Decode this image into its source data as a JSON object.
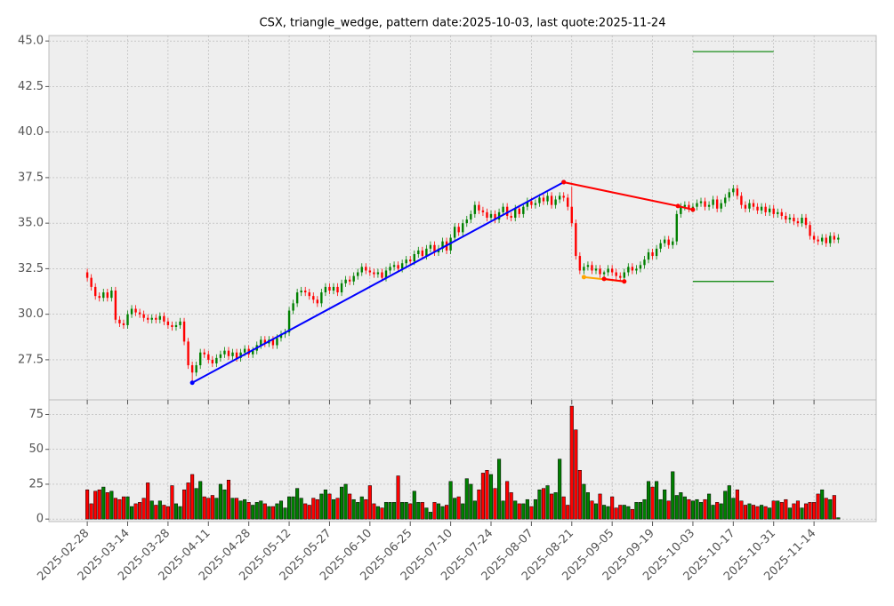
{
  "chart_data": [
    {
      "type": "candlestick",
      "title": "CSX, triangle_wedge, pattern date:2025-10-03, last quote:2025-11-24",
      "up_color": "green",
      "down_color": "red",
      "xlim": [
        -9.5,
        195.4
      ],
      "ylim": [
        25.3,
        45.3
      ],
      "yticks": [
        27.5,
        {
          "value": 30,
          "label": "30.0"
        },
        32.5,
        {
          "value": 35,
          "label": "35.0"
        },
        37.5,
        {
          "value": 40,
          "label": "40.0"
        },
        42.5,
        {
          "value": 45,
          "label": "45.0"
        }
      ],
      "grid": true,
      "open": [
        32.3,
        32.0,
        31.5,
        31.0,
        30.9,
        31.2,
        30.9,
        31.3,
        29.7,
        29.5,
        29.4,
        30.0,
        30.3,
        30.1,
        30.0,
        29.8,
        29.7,
        29.8,
        29.7,
        29.9,
        29.6,
        29.4,
        29.3,
        29.4,
        29.6,
        28.5,
        27.2,
        26.8,
        27.2,
        27.9,
        27.8,
        27.5,
        27.3,
        27.6,
        27.8,
        28.0,
        27.7,
        27.9,
        27.6,
        27.9,
        28.1,
        27.8,
        28.0,
        28.3,
        28.6,
        28.4,
        28.6,
        28.3,
        28.7,
        28.9,
        29.0,
        30.2,
        30.6,
        31.2,
        31.3,
        31.2,
        31.0,
        30.8,
        30.6,
        31.2,
        31.5,
        31.3,
        31.5,
        31.2,
        31.7,
        31.9,
        31.8,
        32.1,
        32.3,
        32.6,
        32.4,
        32.3,
        32.2,
        32.3,
        32.0,
        32.4,
        32.6,
        32.7,
        32.5,
        32.8,
        33.0,
        32.9,
        33.3,
        33.5,
        33.2,
        33.6,
        33.8,
        33.4,
        33.6,
        34.0,
        33.5,
        34.2,
        34.8,
        34.5,
        35.0,
        35.2,
        35.5,
        36.0,
        35.7,
        35.6,
        35.3,
        35.5,
        35.2,
        35.6,
        35.9,
        35.4,
        35.3,
        35.8,
        35.5,
        35.9,
        36.2,
        36.0,
        36.1,
        36.4,
        36.2,
        36.5,
        36.0,
        36.3,
        36.5,
        36.4,
        35.9,
        35.0,
        33.2,
        32.4,
        32.6,
        32.7,
        32.4,
        32.5,
        32.2,
        32.3,
        32.5,
        32.3,
        32.1,
        32.0,
        32.3,
        32.6,
        32.4,
        32.5,
        32.7,
        33.0,
        33.4,
        33.2,
        33.6,
        33.9,
        34.1,
        33.8,
        34.0,
        35.5,
        35.9,
        36.0,
        35.8,
        35.9,
        36.1,
        36.2,
        35.9,
        36.0,
        36.3,
        35.8,
        36.1,
        36.4,
        36.7,
        36.9,
        36.5,
        36.0,
        35.8,
        36.1,
        35.9,
        35.7,
        35.9,
        35.6,
        35.8,
        35.5,
        35.6,
        35.4,
        35.2,
        35.3,
        35.1,
        35.0,
        35.3,
        34.9,
        34.3,
        34.1,
        34.0,
        34.2,
        33.9,
        34.3,
        34.1
      ],
      "high": [
        32.5,
        32.2,
        31.7,
        31.2,
        31.4,
        31.4,
        31.5,
        31.5,
        29.9,
        29.7,
        30.2,
        30.5,
        30.5,
        30.3,
        30.2,
        30.0,
        30.0,
        30.0,
        30.1,
        30.1,
        29.8,
        29.6,
        29.6,
        29.8,
        29.8,
        28.7,
        27.4,
        27.4,
        28.1,
        28.1,
        28.0,
        27.7,
        27.8,
        28.0,
        28.2,
        28.2,
        28.1,
        28.1,
        28.1,
        28.3,
        28.3,
        28.2,
        28.5,
        28.8,
        28.8,
        28.8,
        28.8,
        28.9,
        29.1,
        29.2,
        30.4,
        30.8,
        31.4,
        31.5,
        31.5,
        31.4,
        31.2,
        31.0,
        31.4,
        31.7,
        31.7,
        31.7,
        31.7,
        31.9,
        32.1,
        32.1,
        32.3,
        32.5,
        32.8,
        32.8,
        32.6,
        32.5,
        32.5,
        32.5,
        32.6,
        32.8,
        32.9,
        32.9,
        33.0,
        33.2,
        33.2,
        33.5,
        33.7,
        33.7,
        33.8,
        34.0,
        34.0,
        33.8,
        34.2,
        34.2,
        34.4,
        35.0,
        35.0,
        35.2,
        35.4,
        35.7,
        36.2,
        36.2,
        35.9,
        35.8,
        35.7,
        35.7,
        35.8,
        36.1,
        36.1,
        35.6,
        36.0,
        36.0,
        36.1,
        36.4,
        36.4,
        36.3,
        36.6,
        36.6,
        36.7,
        36.7,
        36.5,
        36.7,
        36.7,
        36.6,
        37.0,
        35.2,
        33.4,
        32.8,
        32.9,
        32.9,
        32.7,
        32.7,
        32.4,
        32.7,
        32.7,
        32.5,
        32.3,
        32.5,
        32.8,
        32.8,
        32.7,
        32.9,
        33.2,
        33.6,
        33.6,
        33.8,
        34.1,
        34.3,
        34.3,
        34.2,
        35.7,
        36.1,
        36.2,
        36.2,
        36.1,
        36.3,
        36.4,
        36.4,
        36.2,
        36.5,
        36.5,
        36.3,
        36.6,
        36.9,
        37.1,
        37.1,
        36.7,
        36.2,
        36.3,
        36.3,
        36.1,
        36.1,
        36.1,
        36.0,
        36.0,
        35.8,
        35.8,
        35.6,
        35.5,
        35.5,
        35.3,
        35.5,
        35.5,
        35.1,
        34.5,
        34.3,
        34.4,
        34.4,
        34.5,
        34.5,
        34.4
      ],
      "low": [
        31.8,
        31.3,
        30.8,
        30.7,
        30.7,
        30.7,
        30.7,
        29.5,
        29.3,
        29.2,
        29.2,
        29.8,
        29.9,
        29.8,
        29.6,
        29.5,
        29.5,
        29.5,
        29.5,
        29.4,
        29.2,
        29.1,
        29.1,
        29.2,
        28.3,
        27.0,
        26.2,
        26.6,
        27.0,
        27.6,
        27.3,
        27.1,
        27.1,
        27.4,
        27.6,
        27.5,
        27.5,
        27.4,
        27.4,
        27.7,
        27.6,
        27.6,
        27.8,
        28.1,
        28.2,
        28.2,
        28.1,
        28.1,
        28.5,
        28.7,
        28.8,
        30.0,
        30.4,
        31.0,
        31.0,
        30.8,
        30.6,
        30.4,
        30.4,
        31.0,
        31.1,
        31.1,
        31.0,
        31.0,
        31.5,
        31.6,
        31.6,
        31.9,
        32.1,
        32.2,
        32.1,
        32.0,
        32.0,
        31.8,
        31.8,
        32.2,
        32.4,
        32.3,
        32.3,
        32.6,
        32.7,
        32.7,
        33.1,
        33.0,
        33.0,
        33.4,
        33.2,
        33.2,
        33.4,
        33.3,
        33.3,
        34.0,
        34.3,
        34.3,
        34.8,
        35.0,
        35.3,
        35.5,
        35.4,
        35.1,
        35.1,
        35.0,
        35.0,
        35.4,
        35.2,
        35.1,
        35.1,
        35.3,
        35.3,
        35.7,
        35.8,
        35.8,
        35.9,
        36.0,
        36.0,
        35.8,
        35.8,
        36.1,
        36.2,
        35.7,
        34.8,
        33.0,
        32.2,
        32.2,
        32.4,
        32.2,
        32.2,
        32.0,
        32.0,
        32.1,
        32.1,
        31.9,
        31.8,
        31.8,
        32.1,
        32.2,
        32.2,
        32.3,
        32.5,
        32.8,
        33.0,
        33.0,
        33.4,
        33.7,
        33.6,
        33.6,
        33.8,
        35.3,
        35.7,
        35.6,
        35.6,
        35.7,
        35.9,
        35.7,
        35.7,
        35.8,
        35.6,
        35.6,
        35.9,
        36.2,
        36.5,
        36.3,
        35.8,
        35.6,
        35.6,
        35.7,
        35.5,
        35.5,
        35.4,
        35.4,
        35.3,
        35.3,
        35.2,
        35.0,
        35.0,
        34.9,
        34.8,
        34.8,
        34.7,
        34.1,
        33.9,
        33.8,
        33.8,
        33.7,
        33.7,
        33.9,
        33.9
      ],
      "close": [
        32.0,
        31.5,
        31.0,
        30.9,
        31.2,
        30.9,
        31.3,
        29.7,
        29.5,
        29.4,
        30.0,
        30.3,
        30.1,
        30.0,
        29.8,
        29.7,
        29.8,
        29.7,
        29.9,
        29.6,
        29.4,
        29.3,
        29.4,
        29.6,
        28.5,
        27.2,
        26.8,
        27.2,
        27.9,
        27.8,
        27.5,
        27.3,
        27.6,
        27.8,
        28.0,
        27.7,
        27.9,
        27.6,
        27.9,
        28.1,
        27.8,
        28.0,
        28.3,
        28.6,
        28.4,
        28.6,
        28.3,
        28.7,
        28.9,
        29.0,
        30.2,
        30.6,
        31.2,
        31.3,
        31.2,
        31.0,
        30.8,
        30.6,
        31.2,
        31.5,
        31.3,
        31.5,
        31.2,
        31.7,
        31.9,
        31.8,
        32.1,
        32.3,
        32.6,
        32.4,
        32.3,
        32.2,
        32.3,
        32.0,
        32.4,
        32.6,
        32.7,
        32.5,
        32.8,
        33.0,
        32.9,
        33.3,
        33.5,
        33.2,
        33.6,
        33.8,
        33.4,
        33.6,
        34.0,
        33.5,
        34.2,
        34.8,
        34.5,
        35.0,
        35.2,
        35.5,
        36.0,
        35.7,
        35.6,
        35.3,
        35.5,
        35.2,
        35.6,
        35.9,
        35.4,
        35.3,
        35.8,
        35.5,
        35.9,
        36.2,
        36.0,
        36.1,
        36.4,
        36.2,
        36.5,
        36.0,
        36.3,
        36.5,
        36.4,
        35.9,
        35.0,
        33.2,
        32.4,
        32.6,
        32.7,
        32.4,
        32.5,
        32.2,
        32.3,
        32.5,
        32.3,
        32.1,
        32.0,
        32.3,
        32.6,
        32.4,
        32.5,
        32.7,
        33.0,
        33.4,
        33.2,
        33.6,
        33.9,
        34.1,
        33.8,
        34.0,
        35.5,
        35.9,
        36.0,
        35.8,
        35.9,
        36.1,
        36.2,
        35.9,
        36.0,
        36.3,
        35.8,
        36.1,
        36.4,
        36.7,
        36.9,
        36.5,
        36.0,
        35.8,
        36.1,
        35.9,
        35.7,
        35.9,
        35.6,
        35.8,
        35.5,
        35.6,
        35.4,
        35.2,
        35.3,
        35.1,
        35.0,
        35.3,
        34.9,
        34.3,
        34.1,
        34.0,
        34.2,
        33.9,
        34.3,
        34.1,
        34.2
      ],
      "overlays": [
        {
          "color": "blue",
          "marker": true,
          "x": [
            26,
            118
          ],
          "y": [
            26.24,
            37.25
          ]
        },
        {
          "color": "red",
          "marker": true,
          "x": [
            118,
            146.3,
            150
          ],
          "y": [
            37.25,
            35.94,
            35.74
          ]
        },
        {
          "color": "orange",
          "marker": true,
          "x": [
            123,
            133
          ],
          "y": [
            32.04,
            31.8
          ]
        },
        {
          "color": "red",
          "marker": true,
          "x": [
            128,
            133
          ],
          "y": [
            31.94,
            31.8
          ]
        },
        {
          "color": "green",
          "marker": false,
          "x": [
            150,
            170
          ],
          "y": [
            44.42,
            44.42
          ]
        },
        {
          "color": "green",
          "marker": false,
          "x": [
            150,
            170
          ],
          "y": [
            31.8,
            31.8
          ]
        }
      ]
    },
    {
      "type": "bar",
      "xlim": [
        -9.5,
        195.4
      ],
      "ylim": [
        -1.8,
        85.5
      ],
      "yticks": [
        0,
        25,
        50,
        75
      ],
      "grid": true,
      "xticks": [
        {
          "value": 0,
          "label": "2025-02-28"
        },
        {
          "value": 10,
          "label": "2025-03-14"
        },
        {
          "value": 20,
          "label": "2025-03-28"
        },
        {
          "value": 30,
          "label": "2025-04-11"
        },
        {
          "value": 40,
          "label": "2025-04-28"
        },
        {
          "value": 50,
          "label": "2025-05-12"
        },
        {
          "value": 60,
          "label": "2025-05-27"
        },
        {
          "value": 70,
          "label": "2025-06-10"
        },
        {
          "value": 80,
          "label": "2025-06-25"
        },
        {
          "value": 90,
          "label": "2025-07-10"
        },
        {
          "value": 100,
          "label": "2025-07-24"
        },
        {
          "value": 110,
          "label": "2025-08-07"
        },
        {
          "value": 120,
          "label": "2025-08-21"
        },
        {
          "value": 130,
          "label": "2025-09-05"
        },
        {
          "value": 140,
          "label": "2025-09-19"
        },
        {
          "value": 150,
          "label": "2025-10-03"
        },
        {
          "value": 160,
          "label": "2025-10-17"
        },
        {
          "value": 170,
          "label": "2025-10-31"
        },
        {
          "value": 180,
          "label": "2025-11-14"
        }
      ],
      "values": [
        21,
        11,
        20,
        21,
        23,
        19,
        20,
        15,
        14,
        16,
        16,
        9,
        11,
        12,
        15,
        26,
        13,
        10,
        13,
        10,
        9,
        24,
        11,
        9,
        21,
        26,
        32,
        22,
        27,
        16,
        15,
        17,
        15,
        25,
        21,
        28,
        15,
        15,
        13,
        14,
        12,
        10,
        12,
        13,
        11,
        9,
        9,
        11,
        13,
        8,
        16,
        16,
        22,
        15,
        11,
        10,
        15,
        14,
        18,
        21,
        18,
        14,
        15,
        23,
        25,
        18,
        14,
        12,
        16,
        14,
        24,
        11,
        9,
        8,
        12,
        12,
        12,
        31,
        12,
        12,
        11,
        20,
        12,
        12,
        8,
        5,
        12,
        11,
        9,
        10,
        27,
        15,
        16,
        11,
        29,
        25,
        13,
        21,
        33,
        35,
        32,
        22,
        43,
        13,
        27,
        19,
        13,
        11,
        11,
        14,
        9,
        14,
        21,
        22,
        24,
        18,
        19,
        43,
        16,
        10,
        81,
        64,
        35,
        25,
        19,
        13,
        11,
        18,
        10,
        9,
        16,
        8,
        10,
        10,
        9,
        7,
        12,
        12,
        14,
        27,
        23,
        27,
        14,
        21,
        13,
        34,
        17,
        19,
        16,
        14,
        13,
        14,
        12,
        14,
        18,
        10,
        12,
        11,
        20,
        24,
        15,
        21,
        13,
        10,
        11,
        10,
        9,
        10,
        9,
        8,
        13,
        13,
        12,
        14,
        8,
        11,
        13,
        8,
        11,
        12,
        12,
        18,
        21,
        15,
        14,
        17,
        1
      ]
    }
  ]
}
